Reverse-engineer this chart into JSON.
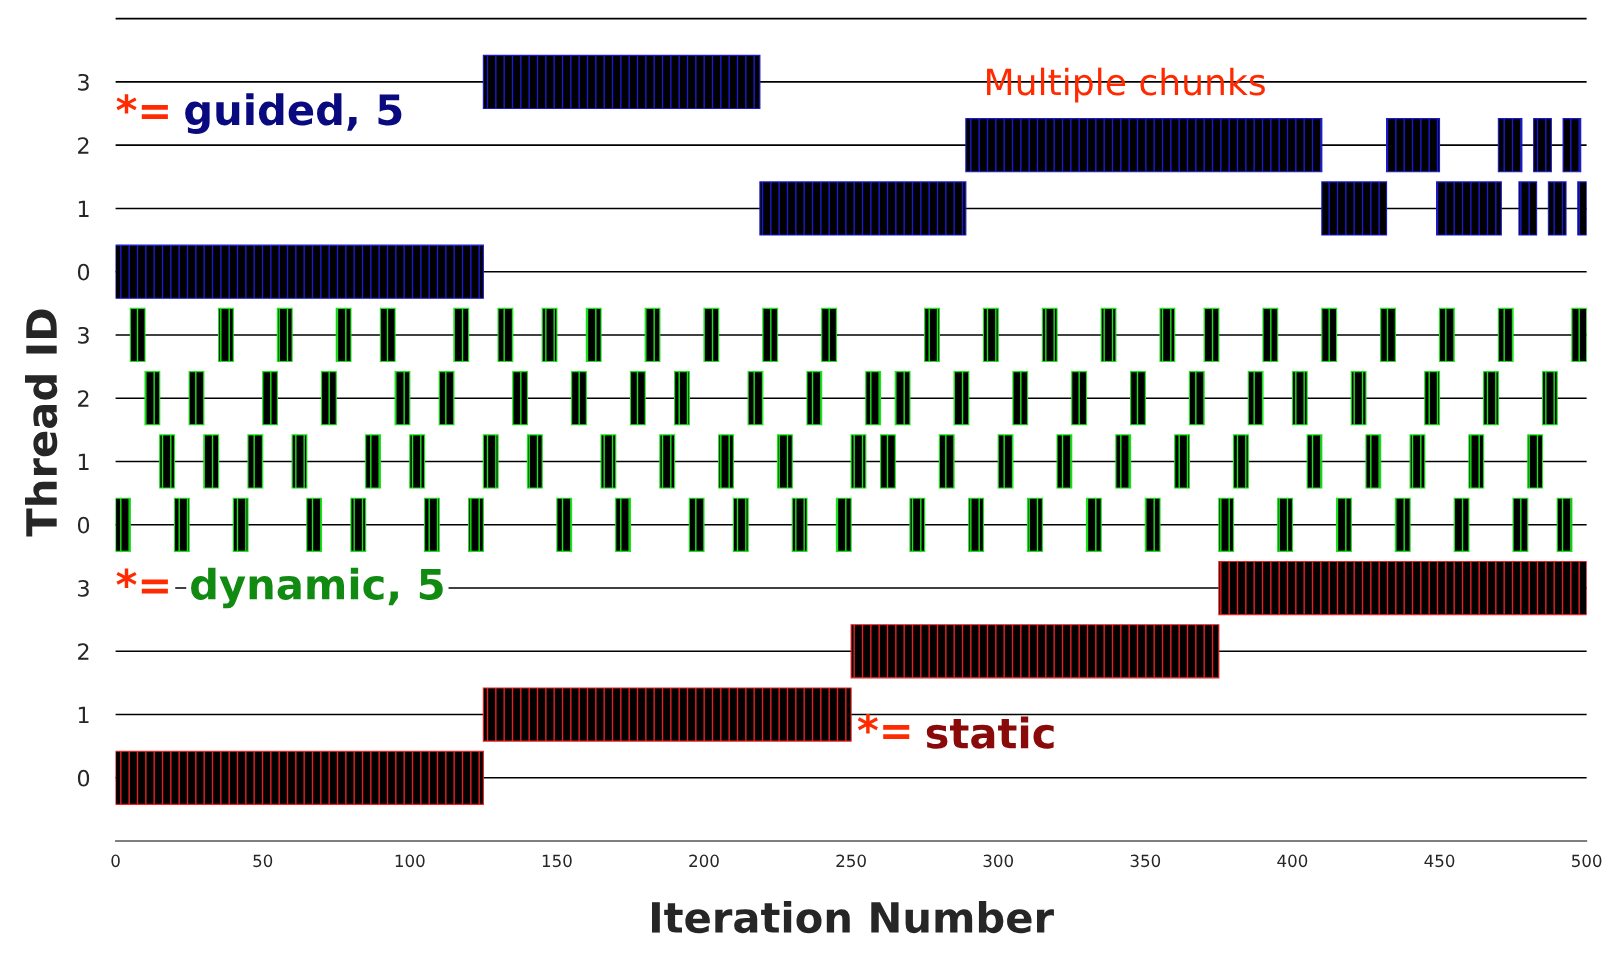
{
  "chart_data": {
    "type": "bar",
    "orientation": "horizontal",
    "xlabel": "Iteration Number",
    "ylabel": "Thread ID",
    "categories": [
      null,
      "3",
      "2",
      "1",
      "0",
      "3",
      "2",
      "1",
      "0",
      "3",
      "2",
      "1",
      "0"
    ],
    "xlim": [
      0,
      500
    ],
    "xticks": [
      0,
      50,
      100,
      150,
      200,
      250,
      300,
      350,
      400,
      450,
      500
    ],
    "grid": "y",
    "legend": false,
    "annotations": [
      "*=",
      "guided, 5",
      "*=",
      "dynamic, 5",
      "*=",
      "static",
      "Multiple chunks"
    ],
    "series": [
      {
        "color": "#1a1ad0",
        "base": [
          null,
          125,
          289,
          219,
          0,
          null,
          null,
          null,
          null,
          null,
          null,
          null,
          null
        ],
        "values": [
          null,
          94,
          121,
          70,
          125,
          null,
          null,
          null,
          null,
          null,
          null,
          null,
          null
        ]
      },
      {
        "color": "#1a1ad0",
        "base": [
          null,
          null,
          432,
          410,
          null,
          null,
          null,
          null,
          null,
          null,
          null,
          null,
          null
        ],
        "values": [
          null,
          null,
          18,
          22,
          null,
          null,
          null,
          null,
          null,
          null,
          null,
          null,
          null
        ]
      },
      {
        "color": "#1a1ad0",
        "base": [
          null,
          null,
          470,
          449,
          null,
          null,
          null,
          null,
          null,
          null,
          null,
          null,
          null
        ],
        "values": [
          null,
          null,
          8,
          22,
          null,
          null,
          null,
          null,
          null,
          null,
          null,
          null,
          null
        ]
      },
      {
        "color": "#1a1ad0",
        "base": [
          null,
          null,
          482,
          477,
          null,
          null,
          null,
          null,
          null,
          null,
          null,
          null,
          null
        ],
        "values": [
          null,
          null,
          6,
          6,
          null,
          null,
          null,
          null,
          null,
          null,
          null,
          null,
          null
        ]
      },
      {
        "color": "#1a1ad0",
        "base": [
          null,
          null,
          492,
          487,
          null,
          null,
          null,
          null,
          null,
          null,
          null,
          null,
          null
        ],
        "values": [
          null,
          null,
          6,
          6,
          null,
          null,
          null,
          null,
          null,
          null,
          null,
          null,
          null
        ]
      },
      {
        "color": "#1a1ad0",
        "base": [
          null,
          null,
          null,
          497,
          null,
          null,
          null,
          null,
          null,
          null,
          null,
          null,
          null
        ],
        "values": [
          null,
          null,
          null,
          3,
          null,
          null,
          null,
          null,
          null,
          null,
          null,
          null,
          null
        ]
      },
      {
        "color": "#19e619",
        "base": [
          null,
          null,
          null,
          null,
          null,
          5,
          10,
          15,
          0,
          null,
          null,
          null,
          null
        ],
        "values": [
          null,
          null,
          null,
          null,
          null,
          5,
          5,
          5,
          5,
          null,
          null,
          null,
          null
        ]
      },
      {
        "color": "#19e619",
        "base": [
          null,
          null,
          null,
          null,
          null,
          35,
          25,
          30,
          20,
          null,
          null,
          null,
          null
        ],
        "values": [
          null,
          null,
          null,
          null,
          null,
          5,
          5,
          5,
          5,
          null,
          null,
          null,
          null
        ]
      },
      {
        "color": "#19e619",
        "base": [
          null,
          null,
          null,
          null,
          null,
          55,
          50,
          45,
          40,
          null,
          null,
          null,
          null
        ],
        "values": [
          null,
          null,
          null,
          null,
          null,
          5,
          5,
          5,
          5,
          null,
          null,
          null,
          null
        ]
      },
      {
        "color": "#19e619",
        "base": [
          null,
          null,
          null,
          null,
          null,
          75,
          70,
          60,
          65,
          null,
          null,
          null,
          null
        ],
        "values": [
          null,
          null,
          null,
          null,
          null,
          5,
          5,
          5,
          5,
          null,
          null,
          null,
          null
        ]
      },
      {
        "color": "#19e619",
        "base": [
          null,
          null,
          null,
          null,
          null,
          90,
          95,
          85,
          80,
          null,
          null,
          null,
          null
        ],
        "values": [
          null,
          null,
          null,
          null,
          null,
          5,
          5,
          5,
          5,
          null,
          null,
          null,
          null
        ]
      },
      {
        "color": "#19e619",
        "base": [
          null,
          null,
          null,
          null,
          null,
          115,
          110,
          100,
          105,
          null,
          null,
          null,
          null
        ],
        "values": [
          null,
          null,
          null,
          null,
          null,
          5,
          5,
          5,
          5,
          null,
          null,
          null,
          null
        ]
      },
      {
        "color": "#19e619",
        "base": [
          null,
          null,
          null,
          null,
          null,
          130,
          135,
          125,
          120,
          null,
          null,
          null,
          null
        ],
        "values": [
          null,
          null,
          null,
          null,
          null,
          5,
          5,
          5,
          5,
          null,
          null,
          null,
          null
        ]
      },
      {
        "color": "#19e619",
        "base": [
          null,
          null,
          null,
          null,
          null,
          145,
          155,
          140,
          150,
          null,
          null,
          null,
          null
        ],
        "values": [
          null,
          null,
          null,
          null,
          null,
          5,
          5,
          5,
          5,
          null,
          null,
          null,
          null
        ]
      },
      {
        "color": "#19e619",
        "base": [
          null,
          null,
          null,
          null,
          null,
          160,
          175,
          165,
          170,
          null,
          null,
          null,
          null
        ],
        "values": [
          null,
          null,
          null,
          null,
          null,
          5,
          5,
          5,
          5,
          null,
          null,
          null,
          null
        ]
      },
      {
        "color": "#19e619",
        "base": [
          null,
          null,
          null,
          null,
          null,
          180,
          190,
          185,
          195,
          null,
          null,
          null,
          null
        ],
        "values": [
          null,
          null,
          null,
          null,
          null,
          5,
          5,
          5,
          5,
          null,
          null,
          null,
          null
        ]
      },
      {
        "color": "#19e619",
        "base": [
          null,
          null,
          null,
          null,
          null,
          200,
          215,
          205,
          210,
          null,
          null,
          null,
          null
        ],
        "values": [
          null,
          null,
          null,
          null,
          null,
          5,
          5,
          5,
          5,
          null,
          null,
          null,
          null
        ]
      },
      {
        "color": "#19e619",
        "base": [
          null,
          null,
          null,
          null,
          null,
          220,
          235,
          225,
          230,
          null,
          null,
          null,
          null
        ],
        "values": [
          null,
          null,
          null,
          null,
          null,
          5,
          5,
          5,
          5,
          null,
          null,
          null,
          null
        ]
      },
      {
        "color": "#19e619",
        "base": [
          null,
          null,
          null,
          null,
          null,
          240,
          255,
          250,
          245,
          null,
          null,
          null,
          null
        ],
        "values": [
          null,
          null,
          null,
          null,
          null,
          5,
          5,
          5,
          5,
          null,
          null,
          null,
          null
        ]
      },
      {
        "color": "#19e619",
        "base": [
          null,
          null,
          null,
          null,
          null,
          275,
          265,
          260,
          270,
          null,
          null,
          null,
          null
        ],
        "values": [
          null,
          null,
          null,
          null,
          null,
          5,
          5,
          5,
          5,
          null,
          null,
          null,
          null
        ]
      },
      {
        "color": "#19e619",
        "base": [
          null,
          null,
          null,
          null,
          null,
          295,
          285,
          280,
          290,
          null,
          null,
          null,
          null
        ],
        "values": [
          null,
          null,
          null,
          null,
          null,
          5,
          5,
          5,
          5,
          null,
          null,
          null,
          null
        ]
      },
      {
        "color": "#19e619",
        "base": [
          null,
          null,
          null,
          null,
          null,
          315,
          305,
          300,
          310,
          null,
          null,
          null,
          null
        ],
        "values": [
          null,
          null,
          null,
          null,
          null,
          5,
          5,
          5,
          5,
          null,
          null,
          null,
          null
        ]
      },
      {
        "color": "#19e619",
        "base": [
          null,
          null,
          null,
          null,
          null,
          335,
          325,
          320,
          330,
          null,
          null,
          null,
          null
        ],
        "values": [
          null,
          null,
          null,
          null,
          null,
          5,
          5,
          5,
          5,
          null,
          null,
          null,
          null
        ]
      },
      {
        "color": "#19e619",
        "base": [
          null,
          null,
          null,
          null,
          null,
          355,
          345,
          340,
          350,
          null,
          null,
          null,
          null
        ],
        "values": [
          null,
          null,
          null,
          null,
          null,
          5,
          5,
          5,
          5,
          null,
          null,
          null,
          null
        ]
      },
      {
        "color": "#19e619",
        "base": [
          null,
          null,
          null,
          null,
          null,
          370,
          365,
          360,
          375,
          null,
          null,
          null,
          null
        ],
        "values": [
          null,
          null,
          null,
          null,
          null,
          5,
          5,
          5,
          5,
          null,
          null,
          null,
          null
        ]
      },
      {
        "color": "#19e619",
        "base": [
          null,
          null,
          null,
          null,
          null,
          390,
          385,
          380,
          395,
          null,
          null,
          null,
          null
        ],
        "values": [
          null,
          null,
          null,
          null,
          null,
          5,
          5,
          5,
          5,
          null,
          null,
          null,
          null
        ]
      },
      {
        "color": "#19e619",
        "base": [
          null,
          null,
          null,
          null,
          null,
          410,
          400,
          405,
          415,
          null,
          null,
          null,
          null
        ],
        "values": [
          null,
          null,
          null,
          null,
          null,
          5,
          5,
          5,
          5,
          null,
          null,
          null,
          null
        ]
      },
      {
        "color": "#19e619",
        "base": [
          null,
          null,
          null,
          null,
          null,
          430,
          420,
          425,
          435,
          null,
          null,
          null,
          null
        ],
        "values": [
          null,
          null,
          null,
          null,
          null,
          5,
          5,
          5,
          5,
          null,
          null,
          null,
          null
        ]
      },
      {
        "color": "#19e619",
        "base": [
          null,
          null,
          null,
          null,
          null,
          450,
          445,
          440,
          455,
          null,
          null,
          null,
          null
        ],
        "values": [
          null,
          null,
          null,
          null,
          null,
          5,
          5,
          5,
          5,
          null,
          null,
          null,
          null
        ]
      },
      {
        "color": "#19e619",
        "base": [
          null,
          null,
          null,
          null,
          null,
          470,
          465,
          460,
          475,
          null,
          null,
          null,
          null
        ],
        "values": [
          null,
          null,
          null,
          null,
          null,
          5,
          5,
          5,
          5,
          null,
          null,
          null,
          null
        ]
      },
      {
        "color": "#19e619",
        "base": [
          null,
          null,
          null,
          null,
          null,
          495,
          485,
          480,
          490,
          null,
          null,
          null,
          null
        ],
        "values": [
          null,
          null,
          null,
          null,
          null,
          5,
          5,
          5,
          5,
          null,
          null,
          null,
          null
        ]
      },
      {
        "color": "#e62020",
        "base": [
          null,
          null,
          null,
          null,
          null,
          null,
          null,
          null,
          null,
          375,
          250,
          125,
          0
        ],
        "values": [
          null,
          null,
          null,
          null,
          null,
          null,
          null,
          null,
          null,
          125,
          125,
          125,
          125
        ]
      }
    ]
  }
}
